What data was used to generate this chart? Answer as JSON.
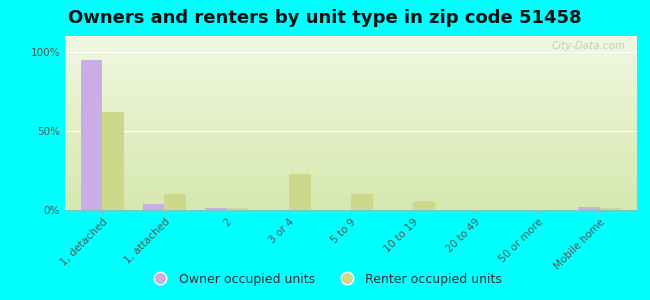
{
  "title": "Owners and renters by unit type in zip code 51458",
  "categories": [
    "1, detached",
    "1, attached",
    "2",
    "3 or 4",
    "5 to 9",
    "10 to 19",
    "20 to 49",
    "50 or more",
    "Mobile home"
  ],
  "owner_values": [
    95,
    4,
    1,
    0,
    0,
    0,
    0,
    0,
    2
  ],
  "renter_values": [
    62,
    10,
    1,
    23,
    10,
    6,
    0,
    0,
    1
  ],
  "owner_color": "#c9aee5",
  "renter_color": "#ccd98a",
  "outer_bg": "#00ffff",
  "plot_bg_top": "#d6e8b0",
  "plot_bg_bottom": "#f0f8e0",
  "yticks": [
    0,
    50,
    100
  ],
  "ylim": [
    0,
    110
  ],
  "bar_width": 0.35,
  "title_fontsize": 13,
  "tick_fontsize": 7.5,
  "legend_fontsize": 9,
  "watermark": "City-Data.com"
}
